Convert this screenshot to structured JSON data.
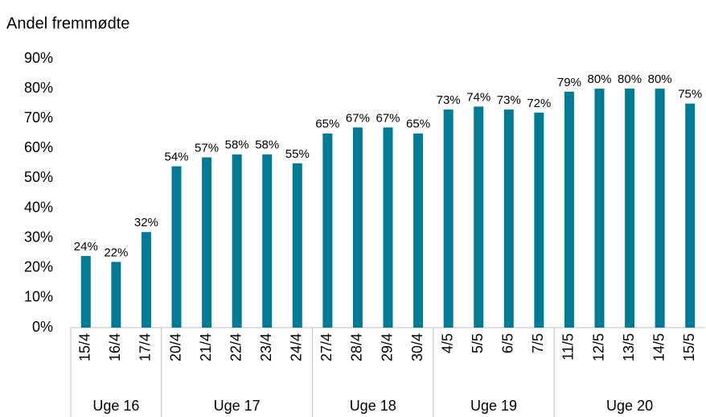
{
  "chart_data": {
    "type": "bar",
    "title": "Andel fremmødte",
    "categories": [
      "15/4",
      "16/4",
      "17/4",
      "20/4",
      "21/4",
      "22/4",
      "23/4",
      "24/4",
      "27/4",
      "28/4",
      "29/4",
      "30/4",
      "4/5",
      "5/5",
      "6/5",
      "7/5",
      "11/5",
      "12/5",
      "13/5",
      "14/5",
      "15/5"
    ],
    "values": [
      24,
      22,
      32,
      54,
      57,
      58,
      58,
      55,
      65,
      67,
      67,
      65,
      73,
      74,
      73,
      72,
      79,
      80,
      80,
      80,
      75
    ],
    "value_labels": [
      "24%",
      "22%",
      "32%",
      "54%",
      "57%",
      "58%",
      "58%",
      "55%",
      "65%",
      "67%",
      "67%",
      "65%",
      "73%",
      "74%",
      "73%",
      "72%",
      "79%",
      "80%",
      "80%",
      "80%",
      "75%"
    ],
    "groups": [
      {
        "name": "Uge 16",
        "size": 3
      },
      {
        "name": "Uge 17",
        "size": 5
      },
      {
        "name": "Uge 18",
        "size": 4
      },
      {
        "name": "Uge 19",
        "size": 4
      },
      {
        "name": "Uge 20",
        "size": 5
      }
    ],
    "color": "#007b96",
    "ylim": [
      0,
      90
    ],
    "yticks": [
      {
        "value": 0,
        "label": "0%"
      },
      {
        "value": 10,
        "label": "10%"
      },
      {
        "value": 20,
        "label": "20%"
      },
      {
        "value": 30,
        "label": "30%"
      },
      {
        "value": 40,
        "label": "40%"
      },
      {
        "value": 50,
        "label": "50%"
      },
      {
        "value": 60,
        "label": "60%"
      },
      {
        "value": 70,
        "label": "70%"
      },
      {
        "value": 80,
        "label": "80%"
      },
      {
        "value": 90,
        "label": "90%"
      }
    ],
    "grid": false
  }
}
